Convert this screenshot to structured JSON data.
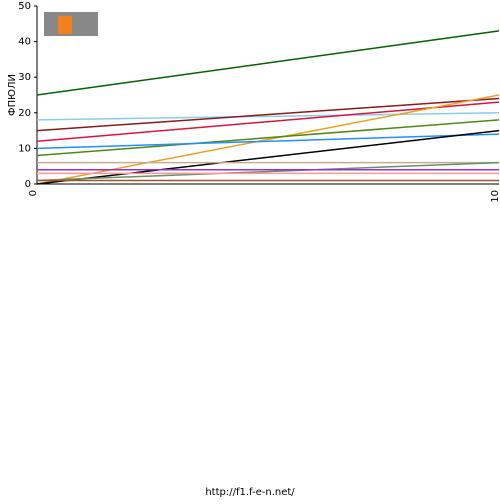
{
  "chart_data": {
    "type": "line",
    "y_label": "ФПЮЛИ",
    "footer": "http://f1.f-e-n.net/",
    "categories": [
      "0",
      "10"
    ],
    "ylim": [
      0,
      50
    ],
    "yticks": [
      0,
      10,
      20,
      30,
      40,
      50
    ],
    "series": [
      {
        "color": "#006400",
        "values": [
          25,
          43
        ]
      },
      {
        "color": "#87ceeb",
        "values": [
          18,
          20
        ]
      },
      {
        "color": "#8b1a1a",
        "values": [
          15,
          24
        ]
      },
      {
        "color": "#dc143c",
        "values": [
          12,
          23
        ]
      },
      {
        "color": "#f0a020",
        "values": [
          0,
          25
        ]
      },
      {
        "color": "#4f8a10",
        "values": [
          8,
          18
        ]
      },
      {
        "color": "#1e90ff",
        "values": [
          10,
          14
        ]
      },
      {
        "color": "#000000",
        "values": [
          0,
          15
        ]
      },
      {
        "color": "#c0b090",
        "values": [
          6,
          6
        ]
      },
      {
        "color": "#6b8e6b",
        "values": [
          1,
          6
        ]
      },
      {
        "color": "#9932cc",
        "values": [
          4,
          4
        ]
      },
      {
        "color": "#ff9999",
        "values": [
          3,
          3
        ]
      },
      {
        "color": "#a0522d",
        "values": [
          1,
          1
        ]
      }
    ]
  }
}
